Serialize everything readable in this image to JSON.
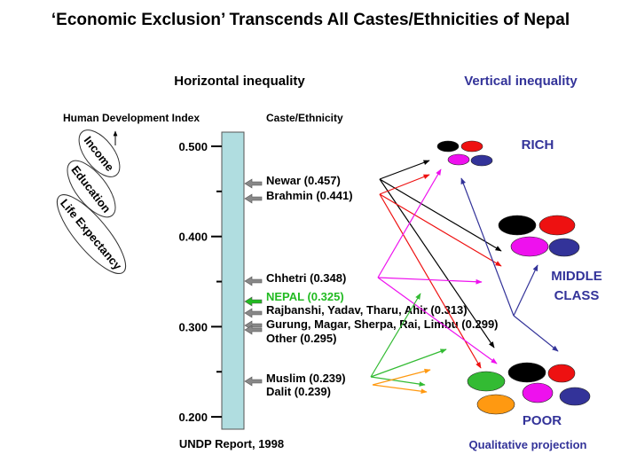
{
  "title": "‘Economic Exclusion’ Transcends All Castes/Ethnicities of Nepal",
  "horizontal_heading": "Horizontal inequality",
  "vertical_heading": "Vertical inequality",
  "hdi_label": "Human Development Index",
  "caste_heading": "Caste/Ethnicity",
  "components": [
    "Income",
    "Education",
    "Life Expectancy"
  ],
  "axis": {
    "ticks": [
      "0.500",
      "0.400",
      "0.300",
      "0.200"
    ],
    "range": [
      0.2,
      0.5
    ]
  },
  "groups": [
    {
      "label": "Newar (0.457)",
      "value": 0.457,
      "color": "#000000"
    },
    {
      "label": "Brahmin (0.441)",
      "value": 0.441,
      "color": "#000000"
    },
    {
      "label": "Chhetri (0.348)",
      "value": 0.348,
      "color": "#000000"
    },
    {
      "label": "NEPAL (0.325)",
      "value": 0.325,
      "color": "#22bb22"
    },
    {
      "label": "Rajbanshi, Yadav, Tharu, Ahir (0.313)",
      "value": 0.313,
      "color": "#000000"
    },
    {
      "label": "Gurung, Magar, Sherpa, Rai, Limbu (0.299)",
      "value": 0.299,
      "color": "#000000"
    },
    {
      "label": "Other (0.295)",
      "value": 0.295,
      "color": "#000000"
    },
    {
      "label": "Muslim (0.239)",
      "value": 0.239,
      "color": "#000000"
    },
    {
      "label": "Dalit (0.239)",
      "value": 0.239,
      "color": "#000000"
    }
  ],
  "classes": {
    "rich": "RICH",
    "middle_1": "MIDDLE",
    "middle_2": "CLASS",
    "poor": "POOR"
  },
  "source": "UNDP Report, 1998",
  "projection_note": "Qualitative projection",
  "colors": {
    "bar": "#b0dde0",
    "heading_blue": "#333399",
    "black": "#000000",
    "red": "#ee1111",
    "magenta": "#ee11ee",
    "navy": "#333399",
    "green": "#33bb33",
    "orange": "#ff9911"
  }
}
